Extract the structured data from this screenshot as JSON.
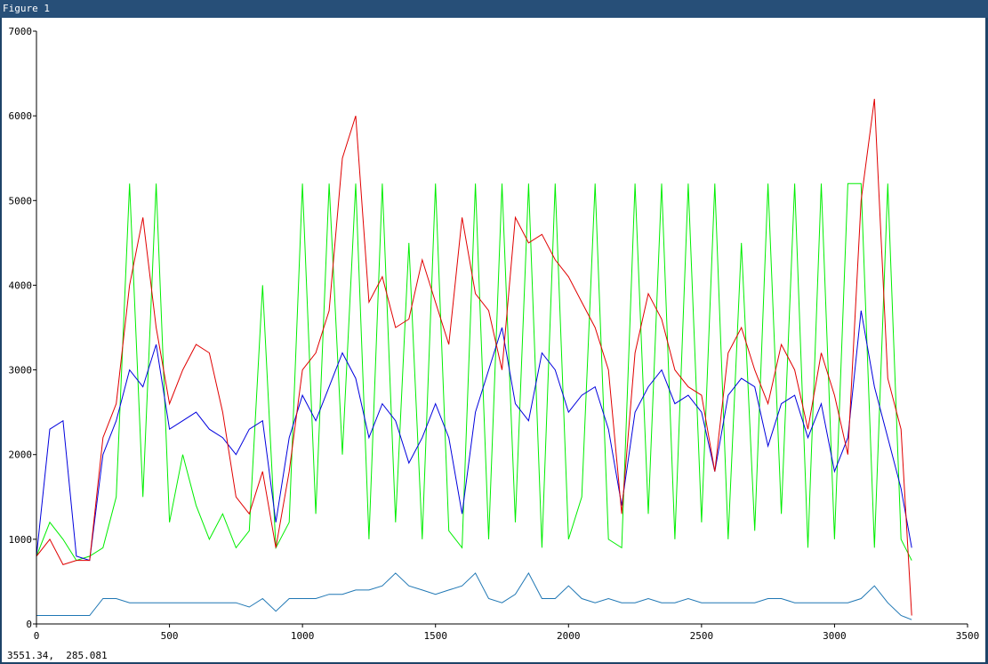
{
  "window": {
    "title": "Figure 1",
    "status": "3551.34,  285.081"
  },
  "chart_data": {
    "type": "line",
    "x": [
      0,
      50,
      100,
      150,
      200,
      250,
      300,
      350,
      400,
      450,
      500,
      550,
      600,
      650,
      700,
      750,
      800,
      850,
      900,
      950,
      1000,
      1050,
      1100,
      1150,
      1200,
      1250,
      1300,
      1350,
      1400,
      1450,
      1500,
      1550,
      1600,
      1650,
      1700,
      1750,
      1800,
      1850,
      1900,
      1950,
      2000,
      2050,
      2100,
      2150,
      2200,
      2250,
      2300,
      2350,
      2400,
      2450,
      2500,
      2550,
      2600,
      2650,
      2700,
      2750,
      2800,
      2850,
      2900,
      2950,
      3000,
      3050,
      3100,
      3150,
      3200,
      3250,
      3290
    ],
    "series": [
      {
        "color": "#00ee00",
        "values": [
          800,
          1200,
          1000,
          750,
          800,
          900,
          1500,
          5200,
          1500,
          5200,
          1200,
          2000,
          1400,
          1000,
          1300,
          900,
          1100,
          4000,
          900,
          1200,
          5200,
          1300,
          5200,
          2000,
          5200,
          1000,
          5200,
          1200,
          4500,
          1000,
          5200,
          1100,
          900,
          5200,
          1000,
          5200,
          1200,
          5200,
          900,
          5200,
          1000,
          1500,
          5200,
          1000,
          900,
          5200,
          1300,
          5200,
          1000,
          5200,
          1200,
          5200,
          1000,
          4500,
          1100,
          5200,
          1300,
          5200,
          900,
          5200,
          1000,
          5200,
          5200,
          900,
          5200,
          1000,
          750
        ]
      },
      {
        "color": "#0000dd",
        "values": [
          800,
          2300,
          2400,
          800,
          750,
          2000,
          2400,
          3000,
          2800,
          3300,
          2300,
          2400,
          2500,
          2300,
          2200,
          2000,
          2300,
          2400,
          1200,
          2200,
          2700,
          2400,
          2800,
          3200,
          2900,
          2200,
          2600,
          2400,
          1900,
          2200,
          2600,
          2200,
          1300,
          2500,
          3000,
          3500,
          2600,
          2400,
          3200,
          3000,
          2500,
          2700,
          2800,
          2300,
          1400,
          2500,
          2800,
          3000,
          2600,
          2700,
          2500,
          1800,
          2700,
          2900,
          2800,
          2100,
          2600,
          2700,
          2200,
          2600,
          1800,
          2200,
          3700,
          2800,
          2200,
          1600,
          900
        ]
      },
      {
        "color": "#e00000",
        "values": [
          800,
          1000,
          700,
          750,
          750,
          2200,
          2600,
          4000,
          4800,
          3500,
          2600,
          3000,
          3300,
          3200,
          2500,
          1500,
          1300,
          1800,
          900,
          1800,
          3000,
          3200,
          3700,
          5500,
          6000,
          3800,
          4100,
          3500,
          3600,
          4300,
          3800,
          3300,
          4800,
          3900,
          3700,
          3000,
          4800,
          4500,
          4600,
          4300,
          4100,
          3800,
          3500,
          3000,
          1300,
          3200,
          3900,
          3600,
          3000,
          2800,
          2700,
          1800,
          3200,
          3500,
          3000,
          2600,
          3300,
          3000,
          2300,
          3200,
          2700,
          2000,
          5000,
          6200,
          2900,
          2300,
          100
        ]
      },
      {
        "color": "#1f77b4",
        "values": [
          100,
          100,
          100,
          100,
          100,
          300,
          300,
          250,
          250,
          250,
          250,
          250,
          250,
          250,
          250,
          250,
          200,
          300,
          150,
          300,
          300,
          300,
          350,
          350,
          400,
          400,
          450,
          600,
          450,
          400,
          350,
          400,
          450,
          600,
          300,
          250,
          350,
          600,
          300,
          300,
          450,
          300,
          250,
          300,
          250,
          250,
          300,
          250,
          250,
          300,
          250,
          250,
          250,
          250,
          250,
          300,
          300,
          250,
          250,
          250,
          250,
          250,
          300,
          450,
          250,
          100,
          50
        ]
      }
    ],
    "xlim": [
      0,
      3500
    ],
    "ylim": [
      0,
      7000
    ],
    "xticks": [
      0,
      500,
      1000,
      1500,
      2000,
      2500,
      3000,
      3500
    ],
    "yticks": [
      0,
      1000,
      2000,
      3000,
      4000,
      5000,
      6000,
      7000
    ]
  }
}
